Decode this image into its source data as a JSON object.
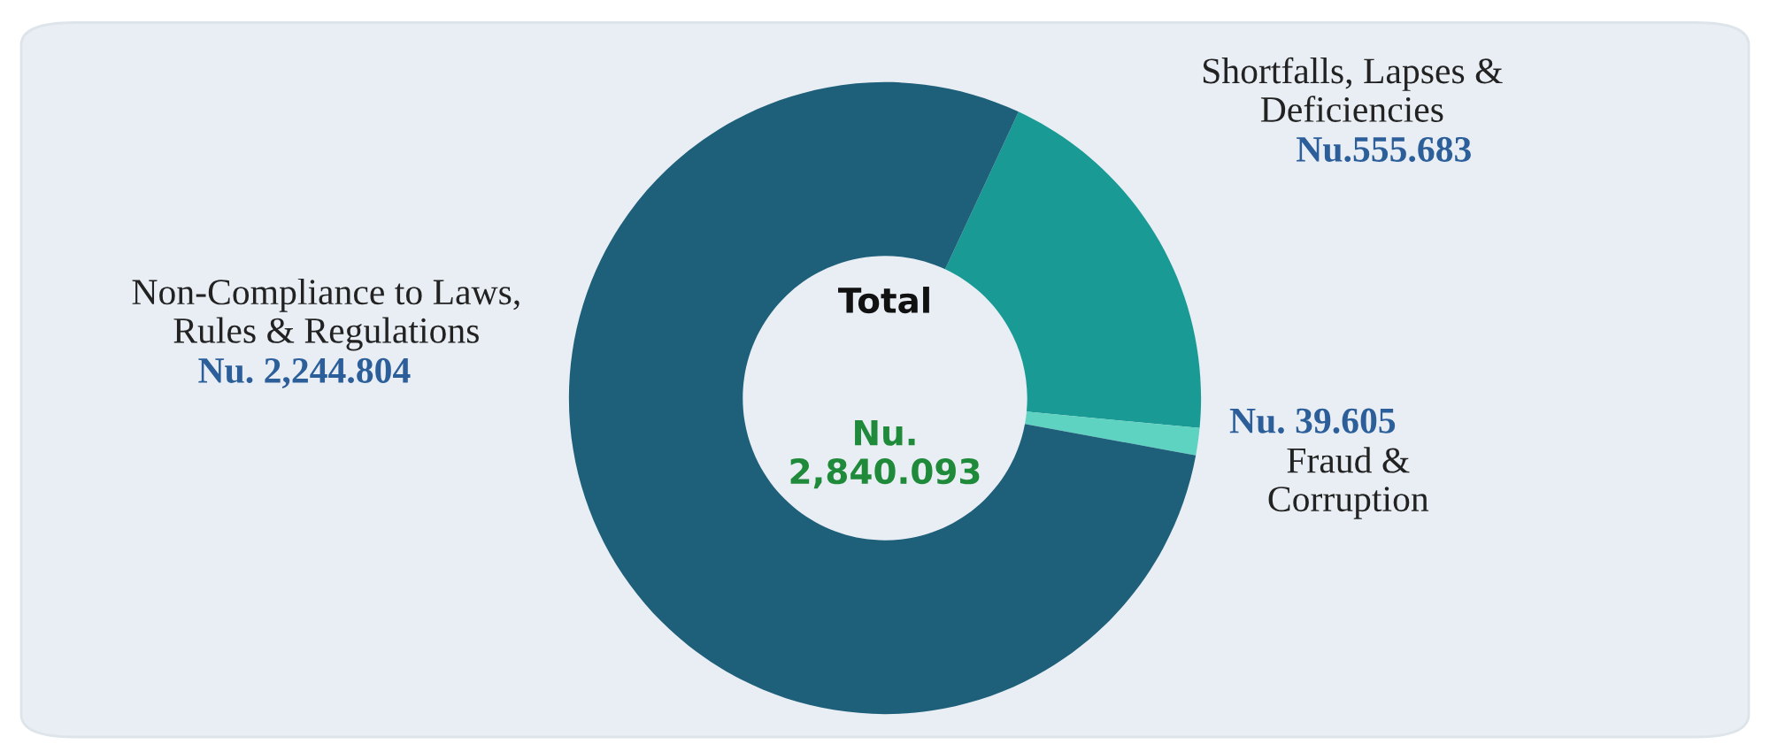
{
  "chart_data": {
    "type": "donut",
    "categories": [
      "Shortfalls, Lapses &\nDeficiencies",
      "Fraud &\nCorruption",
      "Non-Compliance to Laws,\nRules & Regulations"
    ],
    "values": [
      555.683,
      39.605,
      2244.804
    ],
    "value_labels": [
      "Nu.555.683",
      "Nu. 39.605",
      "Nu. 2,244.804"
    ],
    "colors": [
      "#1a9a94",
      "#5fd3c2",
      "#1e5f7a"
    ],
    "annotations": [
      "Total",
      "Nu.\n2,840.093"
    ]
  }
}
